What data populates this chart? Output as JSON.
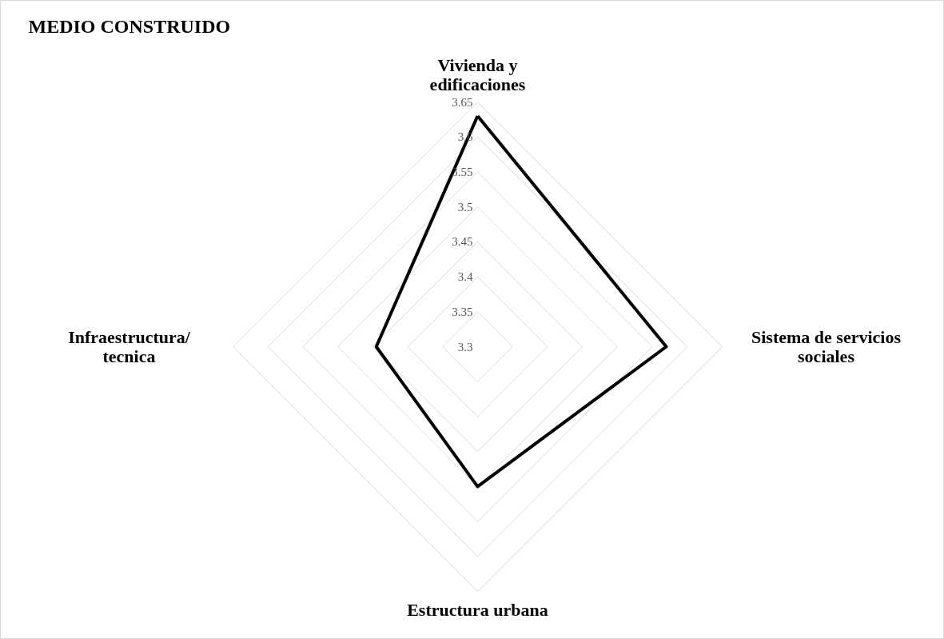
{
  "chart_data": {
    "type": "radar",
    "title": "MEDIO CONSTRUIDO",
    "categories": [
      "Vivienda y edificaciones",
      "Sistema de servicios sociales",
      "Estructura urbana",
      "Infraestructura/ tecnica"
    ],
    "series": [
      {
        "color": "#000000",
        "values": [
          3.63,
          3.57,
          3.5,
          3.445
        ]
      }
    ],
    "ylim": [
      3.3,
      3.65
    ],
    "yticks": [
      3.3,
      3.35,
      3.4,
      3.45,
      3.5,
      3.55,
      3.6,
      3.65
    ],
    "grid": true
  }
}
